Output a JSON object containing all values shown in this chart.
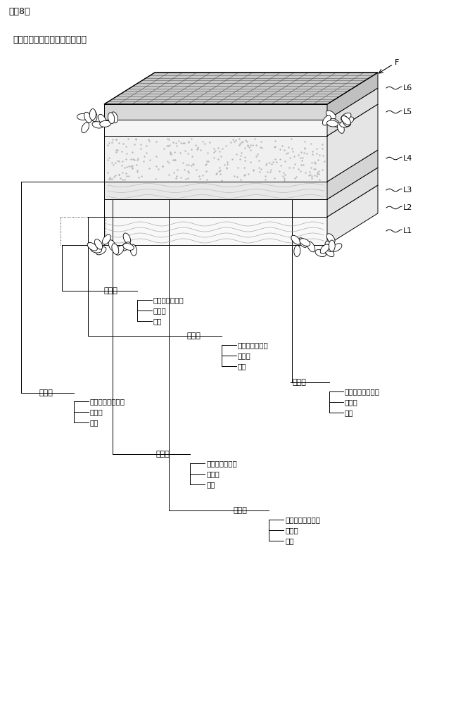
{
  "title": "【図8】",
  "subtitle": "＜カリフォルニアロール寿司＞",
  "bg_color": "#ffffff",
  "layer_labels": [
    "L1",
    "L2",
    "L3",
    "L4",
    "L5",
    "L6"
  ],
  "F_label": "F",
  "layer_names": [
    "第１層",
    "第２層",
    "第３層",
    "第４層",
    "第５層",
    "第６層"
  ],
  "item_names": [
    [
      "名称（シャリ）",
      "層比率",
      "食感"
    ],
    [
      "名称（チーズ）",
      "層比率",
      "食感"
    ],
    [
      "名称（サーモン）",
      "層比率",
      "食感"
    ],
    [
      "名称（アボカド）",
      "層比率",
      "食感"
    ],
    [
      "名称（シャリ）",
      "層比率",
      "食感"
    ],
    [
      "名称（トビッコ）",
      "層比率",
      "食感"
    ]
  ]
}
